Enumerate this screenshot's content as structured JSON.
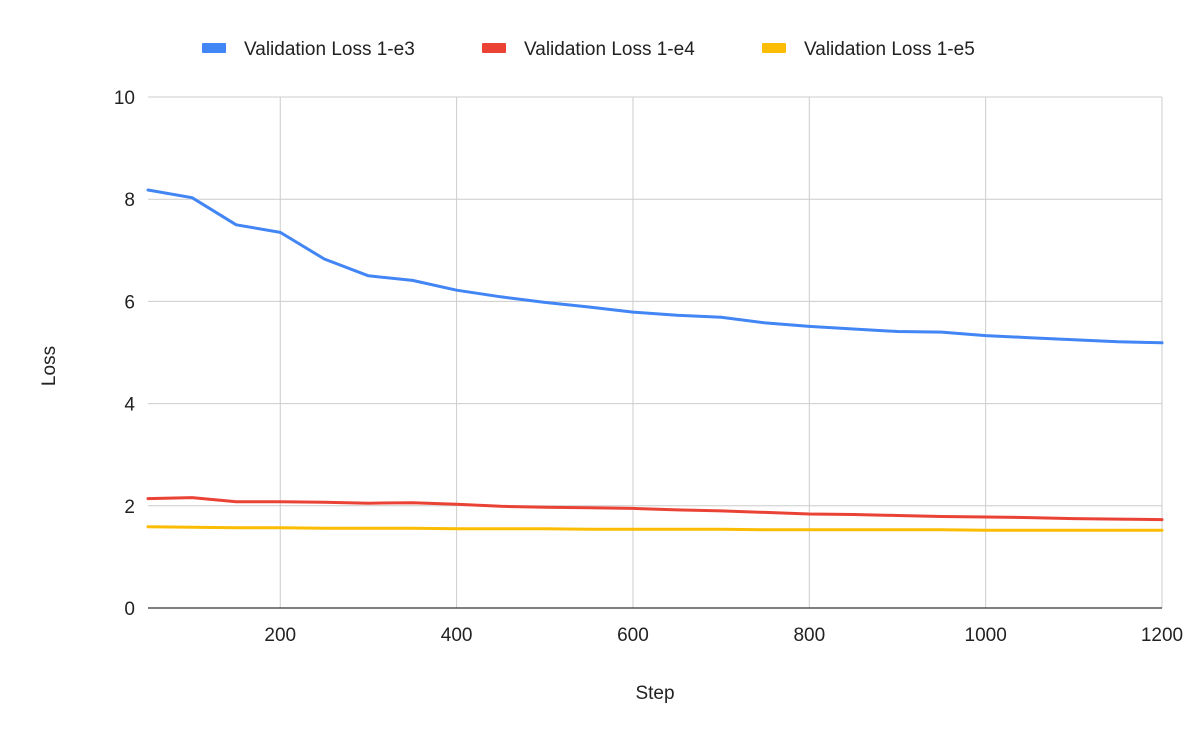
{
  "chart_data": {
    "type": "line",
    "title": "",
    "xlabel": "Step",
    "ylabel": "Loss",
    "xlim": [
      50,
      1200
    ],
    "ylim": [
      0,
      10
    ],
    "x_ticks": [
      200,
      400,
      600,
      800,
      1000,
      1200
    ],
    "y_ticks": [
      0,
      2,
      4,
      6,
      8,
      10
    ],
    "grid": true,
    "legend_position": "top",
    "x": [
      50,
      100,
      150,
      200,
      250,
      300,
      350,
      400,
      450,
      500,
      550,
      600,
      650,
      700,
      750,
      800,
      850,
      900,
      950,
      1000,
      1050,
      1100,
      1150,
      1200
    ],
    "series": [
      {
        "name": "Validation Loss 1-e3",
        "color": "#4285f4",
        "values": [
          8.18,
          8.03,
          7.5,
          7.35,
          6.83,
          6.5,
          6.41,
          6.22,
          6.09,
          5.98,
          5.89,
          5.79,
          5.73,
          5.69,
          5.58,
          5.51,
          5.46,
          5.41,
          5.4,
          5.33,
          5.29,
          5.25,
          5.21,
          5.19
        ]
      },
      {
        "name": "Validation Loss 1-e4",
        "color": "#ea4335",
        "values": [
          2.14,
          2.16,
          2.08,
          2.08,
          2.07,
          2.05,
          2.06,
          2.03,
          1.99,
          1.97,
          1.96,
          1.95,
          1.92,
          1.9,
          1.87,
          1.84,
          1.83,
          1.81,
          1.79,
          1.78,
          1.77,
          1.75,
          1.74,
          1.73
        ]
      },
      {
        "name": "Validation Loss 1-e5",
        "color": "#fbbc04",
        "values": [
          1.59,
          1.58,
          1.57,
          1.57,
          1.56,
          1.56,
          1.56,
          1.55,
          1.55,
          1.55,
          1.54,
          1.54,
          1.54,
          1.54,
          1.53,
          1.53,
          1.53,
          1.53,
          1.53,
          1.52,
          1.52,
          1.52,
          1.52,
          1.52
        ]
      }
    ]
  }
}
